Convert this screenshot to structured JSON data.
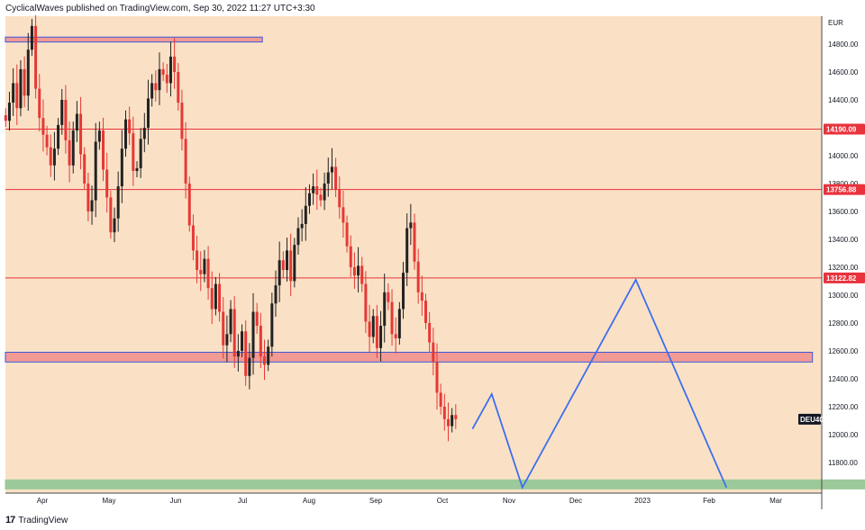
{
  "header": {
    "attribution": "CyclicalWaves published on TradingView.com, Sep 30, 2022 11:27 UTC+3:30"
  },
  "footer": {
    "logo_mark": "17",
    "brand": "TradingView"
  },
  "colors": {
    "background": "#fae1c6",
    "resistance_line": "#e8323c",
    "zone_red_fill": "#f29a94",
    "zone_border": "#3b5bdb",
    "zone_green_fill": "#9cc99a",
    "projection": "#3d6ef0",
    "candle_up": "#222222",
    "candle_down": "#e53935"
  },
  "chart_data": {
    "type": "candlestick",
    "symbol": "DEU40",
    "currency": "EUR",
    "ylim": [
      11580,
      15000
    ],
    "y_ticks": [
      11800,
      12000,
      12200,
      12400,
      12600,
      12800,
      13000,
      13200,
      13400,
      13600,
      13800,
      14000,
      14200,
      14400,
      14600,
      14800
    ],
    "y_tick_labels": [
      "11800.00",
      "12000.00",
      "12200.00",
      "12400.00",
      "12600.00",
      "12800.00",
      "13000.00",
      "13200.00",
      "13400.00",
      "13600.00",
      "13800.00",
      "14000.00",
      "14200.00",
      "14400.00",
      "14600.00",
      "14800.00"
    ],
    "x_ticks": [
      "Apr",
      "May",
      "Jun",
      "Jul",
      "Aug",
      "Sep",
      "Oct",
      "Nov",
      "Dec",
      "2023",
      "Feb",
      "Mar"
    ],
    "horizontal_levels": [
      {
        "value": 14190.09,
        "label": "14190.09"
      },
      {
        "value": 13756.88,
        "label": "13756.88"
      },
      {
        "value": 13122.82,
        "label": "13122.82"
      }
    ],
    "zones": [
      {
        "kind": "supply",
        "from_month": 0,
        "to_month": 3.3,
        "top": 14850,
        "bottom": 14815
      },
      {
        "kind": "support",
        "from_month": 0,
        "to_month": 11.55,
        "top": 12590,
        "bottom": 12520
      },
      {
        "kind": "demand",
        "from_month": 0,
        "to_month": 12.9,
        "top": 11675,
        "bottom": 11610
      }
    ],
    "last_price_label": "DEU40",
    "last_price": 12110,
    "projection_path": [
      {
        "m": 6.45,
        "price": 12040
      },
      {
        "m": 6.74,
        "price": 12290
      },
      {
        "m": 7.2,
        "price": 11620
      },
      {
        "m": 8.9,
        "price": 13110
      },
      {
        "m": 10.26,
        "price": 11620
      }
    ],
    "close_series": [
      14250,
      14380,
      14520,
      14340,
      14620,
      14430,
      14760,
      14930,
      14480,
      14270,
      14150,
      14060,
      13930,
      14050,
      14220,
      14400,
      14110,
      13930,
      14180,
      14300,
      14010,
      13800,
      13600,
      13680,
      14100,
      14180,
      13900,
      13700,
      13450,
      13550,
      13780,
      14050,
      14260,
      14160,
      13890,
      13910,
      14120,
      14200,
      14410,
      14520,
      14470,
      14620,
      14580,
      14520,
      14710,
      14600,
      14380,
      14120,
      13800,
      13500,
      13320,
      13180,
      13150,
      13260,
      13050,
      12900,
      13080,
      12880,
      12640,
      12720,
      12900,
      12560,
      12600,
      12740,
      12420,
      12550,
      12880,
      12780,
      12560,
      12500,
      12630,
      12940,
      13070,
      13250,
      13180,
      13320,
      13100,
      13360,
      13480,
      13510,
      13640,
      13730,
      13780,
      13720,
      13680,
      13800,
      13880,
      13920,
      13760,
      13630,
      13520,
      13350,
      13200,
      13140,
      13210,
      13080,
      12810,
      12700,
      12850,
      12620,
      12780,
      13020,
      12950,
      12720,
      12690,
      12900,
      13160,
      13480,
      13520,
      13240,
      13020,
      12960,
      12800,
      12660,
      12520,
      12300,
      12200,
      12110,
      12060,
      12140,
      12110
    ]
  }
}
